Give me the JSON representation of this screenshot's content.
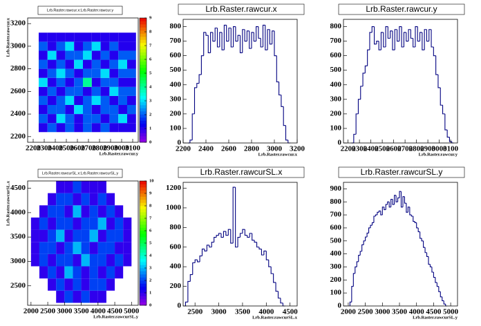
{
  "chart_data": [
    {
      "type": "heatmap",
      "title": "Lrb.Raster.rawcur.x:Lrb.Raster.rawcur.y",
      "x_label": "Lrb.Raster.rawcur.y",
      "y_label": "Lrb.Raster.rawcur.x",
      "xlim": [
        2150,
        3150
      ],
      "xticks": [
        2200,
        2300,
        2400,
        2500,
        2600,
        2700,
        2800,
        2900,
        3000,
        3100
      ],
      "ylim": [
        2150,
        3250
      ],
      "yticks": [
        2200,
        2400,
        2600,
        2800,
        3000,
        3200
      ],
      "xbins": [
        2250,
        2330,
        2410,
        2490,
        2570,
        2650,
        2730,
        2810,
        2890,
        2970,
        3050,
        3130
      ],
      "ybins": [
        2240,
        2320,
        2400,
        2480,
        2560,
        2640,
        2720,
        2800,
        2880,
        2960,
        3040,
        3120
      ],
      "z": [
        [
          1,
          2,
          1,
          2,
          1,
          2,
          1,
          2,
          1,
          1,
          1
        ],
        [
          2,
          1,
          3,
          2,
          1,
          2,
          2,
          1,
          2,
          3,
          1
        ],
        [
          1,
          2,
          2,
          1,
          3,
          2,
          1,
          2,
          2,
          1,
          2
        ],
        [
          2,
          1,
          2,
          3,
          1,
          2,
          3,
          2,
          1,
          2,
          1
        ],
        [
          1,
          2,
          1,
          2,
          2,
          1,
          2,
          1,
          3,
          2,
          2
        ],
        [
          3,
          1,
          2,
          1,
          2,
          4,
          1,
          2,
          2,
          1,
          1
        ],
        [
          1,
          2,
          3,
          2,
          1,
          2,
          2,
          3,
          1,
          2,
          2
        ],
        [
          2,
          1,
          2,
          1,
          3,
          1,
          2,
          1,
          2,
          3,
          1
        ],
        [
          1,
          3,
          1,
          2,
          2,
          3,
          1,
          2,
          1,
          2,
          2
        ],
        [
          2,
          1,
          2,
          3,
          1,
          2,
          3,
          1,
          2,
          1,
          1
        ],
        [
          1,
          1,
          1,
          1,
          1,
          1,
          1,
          1,
          1,
          1,
          1
        ]
      ],
      "zlim": [
        0,
        9
      ],
      "zticks": [
        0,
        1,
        2,
        3,
        4,
        5,
        6,
        7,
        8,
        9
      ]
    },
    {
      "type": "histogram",
      "title": "Lrb.Raster.rawcur.x",
      "x_label": "Lrb.Raster.rawcur.x",
      "color": "#000080",
      "xlim": [
        2200,
        3200
      ],
      "xticks": [
        2200,
        2400,
        2600,
        2800,
        3000,
        3200
      ],
      "ylim": [
        0,
        850
      ],
      "yticks": [
        0,
        100,
        200,
        300,
        400,
        500,
        600,
        700,
        800
      ],
      "bins": [
        2240,
        2260,
        2280,
        2300,
        2320,
        2340,
        2360,
        2380,
        2400,
        2420,
        2440,
        2460,
        2480,
        2500,
        2520,
        2540,
        2560,
        2580,
        2600,
        2620,
        2640,
        2660,
        2680,
        2700,
        2720,
        2740,
        2760,
        2780,
        2800,
        2820,
        2840,
        2860,
        2880,
        2900,
        2920,
        2940,
        2960,
        2980,
        3000,
        3020,
        3040,
        3060,
        3080,
        3100,
        3120,
        3140
      ],
      "values": [
        0,
        20,
        200,
        380,
        410,
        470,
        600,
        760,
        740,
        620,
        760,
        700,
        790,
        660,
        760,
        640,
        810,
        700,
        790,
        660,
        800,
        700,
        740,
        620,
        780,
        700,
        770,
        650,
        760,
        700,
        800,
        720,
        660,
        810,
        640,
        780,
        680,
        770,
        600,
        420,
        330,
        250,
        120,
        20,
        0
      ]
    },
    {
      "type": "histogram",
      "title": "Lrb.Raster.rawcur.y",
      "x_label": "Lrb.Raster.rawcur.y",
      "color": "#000080",
      "xlim": [
        2160,
        3160
      ],
      "xticks": [
        2200,
        2300,
        2400,
        2500,
        2600,
        2700,
        2800,
        2900,
        3000,
        3100
      ],
      "ylim": [
        0,
        850
      ],
      "yticks": [
        0,
        100,
        200,
        300,
        400,
        500,
        600,
        700,
        800
      ],
      "bins": [
        2230,
        2250,
        2270,
        2290,
        2310,
        2330,
        2350,
        2370,
        2390,
        2410,
        2430,
        2450,
        2470,
        2490,
        2510,
        2530,
        2550,
        2570,
        2590,
        2610,
        2630,
        2650,
        2670,
        2690,
        2710,
        2730,
        2750,
        2770,
        2790,
        2810,
        2830,
        2850,
        2870,
        2890,
        2910,
        2930,
        2950,
        2970,
        2990,
        3010,
        3030,
        3050,
        3070,
        3090,
        3110,
        3130
      ],
      "values": [
        0,
        60,
        200,
        300,
        390,
        480,
        530,
        640,
        760,
        800,
        680,
        700,
        640,
        760,
        660,
        800,
        720,
        770,
        640,
        780,
        700,
        800,
        660,
        760,
        700,
        780,
        720,
        660,
        800,
        700,
        760,
        640,
        780,
        700,
        780,
        660,
        600,
        470,
        380,
        260,
        200,
        90,
        40,
        10,
        0
      ]
    },
    {
      "type": "heatmap",
      "title": "Lrb.Raster.rawcurSL.x:Lrb.Raster.rawcurSL.y",
      "x_label": "Lrb.Raster.rawcurSL.y",
      "y_label": "Lrb.Raster.rawcurSL.x",
      "xlim": [
        1900,
        5200
      ],
      "xticks": [
        2000,
        2500,
        3000,
        3500,
        4000,
        4500,
        5000
      ],
      "ylim": [
        2100,
        4650
      ],
      "yticks": [
        2500,
        3000,
        3500,
        4000,
        4500
      ],
      "xbins": [
        2000,
        2250,
        2500,
        2750,
        3000,
        3250,
        3500,
        3750,
        4000,
        4250,
        4500,
        4750,
        5000
      ],
      "ybins": [
        2150,
        2400,
        2650,
        2900,
        3150,
        3400,
        3650,
        3900,
        4150,
        4400,
        4650
      ],
      "z": [
        [
          0,
          0,
          0,
          1,
          2,
          1,
          2,
          1,
          1,
          0,
          0,
          0
        ],
        [
          0,
          0,
          1,
          2,
          1,
          2,
          1,
          2,
          2,
          1,
          0,
          0
        ],
        [
          0,
          1,
          2,
          1,
          3,
          2,
          1,
          2,
          1,
          2,
          1,
          0
        ],
        [
          1,
          2,
          1,
          2,
          2,
          1,
          3,
          2,
          2,
          1,
          2,
          1
        ],
        [
          1,
          2,
          2,
          1,
          2,
          3,
          2,
          1,
          2,
          2,
          1,
          1
        ],
        [
          1,
          1,
          2,
          3,
          1,
          2,
          2,
          3,
          1,
          2,
          2,
          1
        ],
        [
          1,
          2,
          1,
          2,
          2,
          1,
          2,
          2,
          3,
          1,
          2,
          1
        ],
        [
          0,
          1,
          2,
          2,
          1,
          3,
          1,
          2,
          1,
          2,
          1,
          0
        ],
        [
          0,
          0,
          1,
          2,
          2,
          1,
          2,
          1,
          2,
          1,
          0,
          0
        ],
        [
          0,
          0,
          0,
          1,
          1,
          2,
          1,
          1,
          1,
          0,
          0,
          0
        ]
      ],
      "zlim": [
        0,
        10
      ],
      "zticks": [
        0,
        1,
        2,
        3,
        4,
        5,
        6,
        7,
        8,
        9,
        10
      ]
    },
    {
      "type": "histogram",
      "title": "Lrb.Raster.rawcurSL.x",
      "x_label": "Lrb.Raster.rawcurSL.x",
      "color": "#000080",
      "xlim": [
        2250,
        4650
      ],
      "xticks": [
        2500,
        3000,
        3500,
        4000,
        4500
      ],
      "ylim": [
        0,
        1260
      ],
      "yticks": [
        0,
        200,
        400,
        600,
        800,
        1000,
        1200
      ],
      "bins": [
        2300,
        2350,
        2400,
        2450,
        2500,
        2550,
        2600,
        2650,
        2700,
        2750,
        2800,
        2850,
        2900,
        2950,
        3000,
        3050,
        3100,
        3150,
        3200,
        3250,
        3300,
        3350,
        3400,
        3450,
        3500,
        3550,
        3600,
        3650,
        3700,
        3750,
        3800,
        3850,
        3900,
        3950,
        4000,
        4050,
        4100,
        4150,
        4200,
        4250,
        4300,
        4350,
        4400
      ],
      "values": [
        40,
        250,
        320,
        440,
        470,
        450,
        510,
        580,
        560,
        620,
        600,
        650,
        700,
        720,
        740,
        700,
        760,
        720,
        780,
        640,
        1210,
        600,
        700,
        740,
        780,
        720,
        700,
        740,
        670,
        650,
        600,
        580,
        520,
        560,
        470,
        400,
        330,
        240,
        150,
        80,
        30,
        0
      ]
    },
    {
      "type": "histogram",
      "title": "Lrb.Raster.rawcurSL.y",
      "x_label": "Lrb.Raster.rawcurSL.y",
      "color": "#000080",
      "xlim": [
        1860,
        5200
      ],
      "xticks": [
        2000,
        2500,
        3000,
        3500,
        4000,
        4500,
        5000
      ],
      "ylim": [
        0,
        950
      ],
      "yticks": [
        0,
        100,
        200,
        300,
        400,
        500,
        600,
        700,
        800,
        900
      ],
      "bins": [
        2050,
        2100,
        2150,
        2200,
        2250,
        2300,
        2350,
        2400,
        2450,
        2500,
        2550,
        2600,
        2650,
        2700,
        2750,
        2800,
        2850,
        2900,
        2950,
        3000,
        3050,
        3100,
        3150,
        3200,
        3250,
        3300,
        3350,
        3400,
        3450,
        3500,
        3550,
        3600,
        3650,
        3700,
        3750,
        3800,
        3850,
        3900,
        3950,
        4000,
        4050,
        4100,
        4150,
        4200,
        4250,
        4300,
        4350,
        4400,
        4450,
        4500,
        4550,
        4600,
        4650,
        4700,
        4750,
        4800,
        4850,
        4900
      ],
      "values": [
        30,
        150,
        250,
        300,
        340,
        390,
        420,
        470,
        500,
        530,
        560,
        600,
        620,
        640,
        690,
        700,
        720,
        730,
        700,
        760,
        740,
        780,
        800,
        760,
        820,
        780,
        850,
        800,
        830,
        880,
        760,
        840,
        790,
        720,
        760,
        700,
        690,
        650,
        640,
        600,
        570,
        520,
        500,
        450,
        410,
        380,
        320,
        300,
        260,
        220,
        180,
        150,
        110,
        70,
        40,
        15,
        0
      ]
    }
  ]
}
